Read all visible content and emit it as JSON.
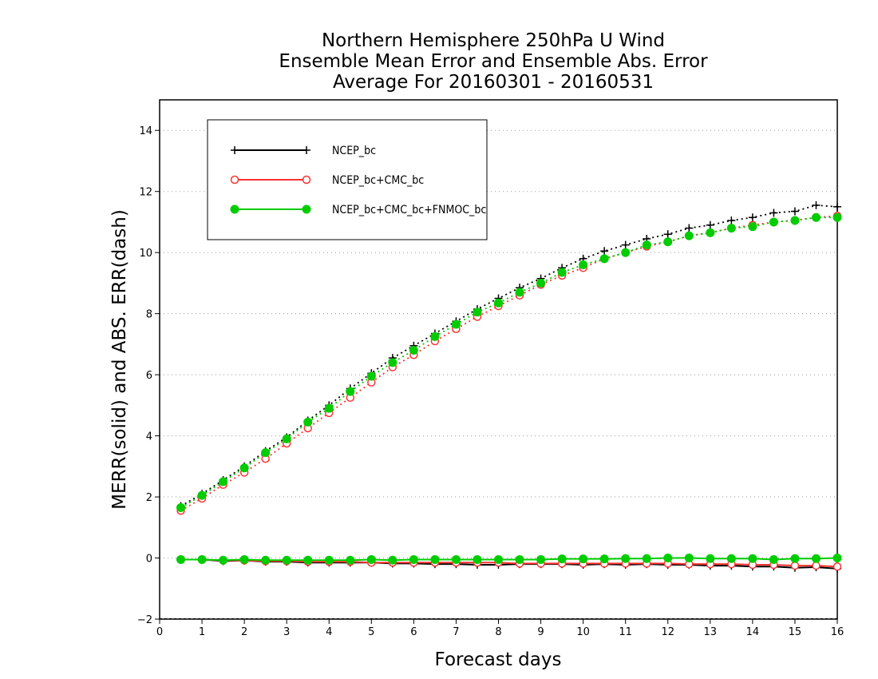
{
  "chart_data": {
    "type": "line",
    "title": [
      "Northern Hemisphere 250hPa U Wind",
      "Ensemble Mean Error and Ensemble Abs. Error",
      "Average For 20160301 - 20160531"
    ],
    "xlabel": "Forecast days",
    "ylabel": "MERR(solid) and ABS. ERR(dash)",
    "xlim": [
      0,
      16
    ],
    "ylim": [
      -2,
      15
    ],
    "xticks": [
      0,
      1,
      2,
      3,
      4,
      5,
      6,
      7,
      8,
      9,
      10,
      11,
      12,
      13,
      14,
      15,
      16
    ],
    "yticks": [
      -2,
      0,
      2,
      4,
      6,
      8,
      10,
      12,
      14
    ],
    "grid": "horizontal-dotted",
    "legend_position": "top-left",
    "x": [
      0.5,
      1,
      1.5,
      2,
      2.5,
      3,
      3.5,
      4,
      4.5,
      5,
      5.5,
      6,
      6.5,
      7,
      7.5,
      8,
      8.5,
      9,
      9.5,
      10,
      10.5,
      11,
      11.5,
      12,
      12.5,
      13,
      13.5,
      14,
      14.5,
      15,
      15.5,
      16
    ],
    "series": [
      {
        "name": "NCEP_bc",
        "color": "#000000",
        "marker": "plus",
        "abs_err": [
          1.7,
          2.1,
          2.55,
          3.0,
          3.5,
          3.95,
          4.5,
          5.0,
          5.55,
          6.05,
          6.55,
          6.95,
          7.35,
          7.75,
          8.15,
          8.5,
          8.85,
          9.15,
          9.5,
          9.8,
          10.05,
          10.25,
          10.45,
          10.6,
          10.8,
          10.9,
          11.05,
          11.15,
          11.3,
          11.35,
          11.55,
          11.5
        ],
        "mean_err": [
          -0.05,
          -0.05,
          -0.1,
          -0.08,
          -0.12,
          -0.12,
          -0.15,
          -0.15,
          -0.15,
          -0.15,
          -0.18,
          -0.18,
          -0.2,
          -0.2,
          -0.22,
          -0.22,
          -0.2,
          -0.2,
          -0.2,
          -0.22,
          -0.2,
          -0.22,
          -0.2,
          -0.22,
          -0.22,
          -0.25,
          -0.25,
          -0.28,
          -0.28,
          -0.32,
          -0.3,
          -0.35
        ]
      },
      {
        "name": "NCEP_bc+CMC_bc",
        "color": "#ff3333",
        "marker": "open-circle",
        "abs_err": [
          1.55,
          1.95,
          2.4,
          2.8,
          3.25,
          3.75,
          4.25,
          4.75,
          5.25,
          5.75,
          6.25,
          6.65,
          7.1,
          7.5,
          7.9,
          8.25,
          8.6,
          8.95,
          9.25,
          9.5,
          9.8,
          10.0,
          10.2,
          10.35,
          10.55,
          10.65,
          10.8,
          10.9,
          11.0,
          11.05,
          11.15,
          11.2
        ],
        "mean_err": [
          -0.05,
          -0.05,
          -0.08,
          -0.08,
          -0.1,
          -0.1,
          -0.12,
          -0.12,
          -0.12,
          -0.15,
          -0.15,
          -0.15,
          -0.15,
          -0.15,
          -0.15,
          -0.15,
          -0.18,
          -0.18,
          -0.18,
          -0.18,
          -0.18,
          -0.18,
          -0.18,
          -0.18,
          -0.2,
          -0.2,
          -0.2,
          -0.22,
          -0.22,
          -0.25,
          -0.25,
          -0.28
        ]
      },
      {
        "name": "NCEP_bc+CMC_bc+FNMOC_bc",
        "color": "#00cc00",
        "marker": "filled-circle",
        "abs_err": [
          1.65,
          2.05,
          2.5,
          2.95,
          3.45,
          3.9,
          4.45,
          4.9,
          5.45,
          5.95,
          6.4,
          6.8,
          7.25,
          7.65,
          8.05,
          8.35,
          8.7,
          9.0,
          9.35,
          9.6,
          9.8,
          10.0,
          10.25,
          10.35,
          10.55,
          10.65,
          10.8,
          10.85,
          11.0,
          11.05,
          11.15,
          11.15
        ],
        "mean_err": [
          -0.05,
          -0.05,
          -0.07,
          -0.05,
          -0.07,
          -0.07,
          -0.07,
          -0.07,
          -0.07,
          -0.05,
          -0.07,
          -0.05,
          -0.05,
          -0.05,
          -0.05,
          -0.05,
          -0.05,
          -0.05,
          -0.03,
          -0.03,
          -0.03,
          -0.02,
          -0.02,
          0.0,
          0.0,
          -0.02,
          -0.02,
          -0.02,
          -0.05,
          -0.02,
          -0.02,
          0.0
        ]
      }
    ]
  }
}
